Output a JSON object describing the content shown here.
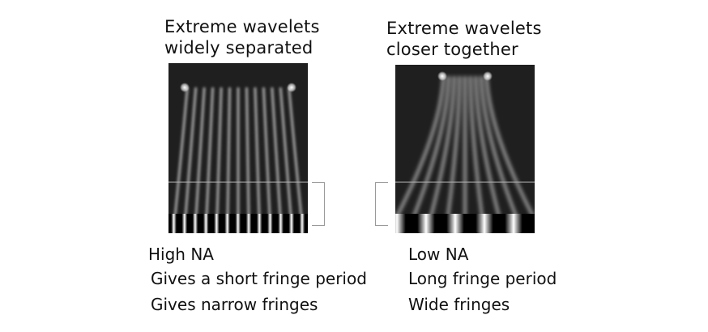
{
  "left": {
    "title_line1": "Extreme wavelets",
    "title_line2": "widely separated",
    "caption_line1": "High NA",
    "caption_line2": "Gives a short fringe period",
    "caption_line3": "Gives narrow fringes"
  },
  "right": {
    "title_line1": "Extreme wavelets",
    "title_line2": "closer together",
    "caption_line1": "Low NA",
    "caption_line2": "Long fringe period",
    "caption_line3": "Wide fringes"
  },
  "colors": {
    "panel_background": "#1f1f1f",
    "fringe_light": "#ffffff",
    "fringe_dark": "#000000",
    "bracket": "#9a9a9a"
  }
}
